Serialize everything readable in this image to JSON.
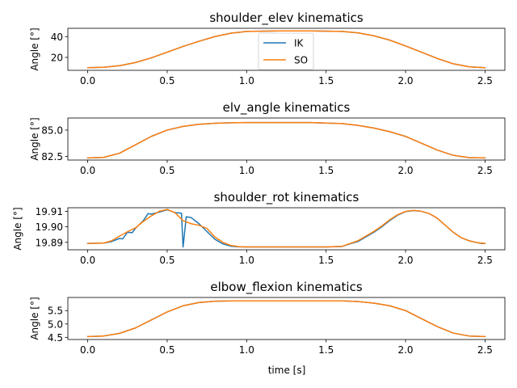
{
  "figure": {
    "xlabel": "time [s]"
  },
  "chart_data": [
    {
      "type": "line",
      "title": "shoulder_elev kinematics",
      "ylabel": "Angle [°]",
      "xlim": [
        -0.125,
        2.625
      ],
      "ylim": [
        7.5,
        48.0
      ],
      "xticks": [
        0.0,
        0.5,
        1.0,
        1.5,
        2.0,
        2.5
      ],
      "xtick_labels": [
        "0.0",
        "0.5",
        "1.0",
        "1.5",
        "2.0",
        "2.5"
      ],
      "yticks": [
        20,
        40
      ],
      "ytick_labels": [
        "20",
        "40"
      ],
      "legend": {
        "location": "upper center",
        "entries": [
          "IK",
          "SO"
        ]
      },
      "series": [
        {
          "name": "IK",
          "color": "#1f77b4",
          "x": [
            0.0,
            0.1,
            0.2,
            0.3,
            0.4,
            0.5,
            0.6,
            0.7,
            0.8,
            0.9,
            1.0,
            1.2,
            1.4,
            1.6,
            1.7,
            1.8,
            1.9,
            2.0,
            2.1,
            2.2,
            2.3,
            2.4,
            2.5
          ],
          "y": [
            10.0,
            10.4,
            12.0,
            15.0,
            19.5,
            25.0,
            30.5,
            35.5,
            40.0,
            43.2,
            45.0,
            45.5,
            45.5,
            45.0,
            43.6,
            40.8,
            36.6,
            31.0,
            25.0,
            18.9,
            13.8,
            10.9,
            10.0
          ]
        },
        {
          "name": "SO",
          "color": "#ff7f0e",
          "x": [
            0.0,
            0.1,
            0.2,
            0.3,
            0.4,
            0.5,
            0.6,
            0.7,
            0.8,
            0.9,
            1.0,
            1.2,
            1.4,
            1.6,
            1.7,
            1.8,
            1.9,
            2.0,
            2.1,
            2.2,
            2.3,
            2.4,
            2.5
          ],
          "y": [
            10.0,
            10.4,
            12.0,
            15.0,
            19.5,
            25.0,
            30.5,
            35.5,
            40.0,
            43.2,
            45.0,
            45.5,
            45.5,
            45.0,
            43.6,
            40.8,
            36.6,
            31.0,
            25.0,
            18.9,
            13.8,
            10.9,
            10.0
          ]
        }
      ]
    },
    {
      "type": "line",
      "title": "elv_angle kinematics",
      "ylabel": "Angle [°]",
      "xlim": [
        -0.125,
        2.625
      ],
      "ylim": [
        82.15,
        86.15
      ],
      "xticks": [
        0.0,
        0.5,
        1.0,
        1.5,
        2.0,
        2.5
      ],
      "xtick_labels": [
        "0.0",
        "0.5",
        "1.0",
        "1.5",
        "2.0",
        "2.5"
      ],
      "yticks": [
        82.5,
        85.0
      ],
      "ytick_labels": [
        "82.5",
        "85.0"
      ],
      "series": [
        {
          "name": "IK",
          "color": "#1f77b4",
          "x": [
            0.0,
            0.1,
            0.2,
            0.3,
            0.4,
            0.5,
            0.6,
            0.7,
            0.8,
            0.9,
            1.0,
            1.2,
            1.4,
            1.6,
            1.7,
            1.8,
            1.9,
            2.0,
            2.1,
            2.2,
            2.3,
            2.4,
            2.5
          ],
          "y": [
            82.35,
            82.4,
            82.8,
            83.6,
            84.4,
            85.0,
            85.35,
            85.55,
            85.65,
            85.7,
            85.72,
            85.72,
            85.72,
            85.62,
            85.45,
            85.2,
            84.85,
            84.4,
            83.75,
            83.1,
            82.6,
            82.38,
            82.35
          ]
        },
        {
          "name": "SO",
          "color": "#ff7f0e",
          "x": [
            0.0,
            0.1,
            0.2,
            0.3,
            0.4,
            0.5,
            0.6,
            0.7,
            0.8,
            0.9,
            1.0,
            1.2,
            1.4,
            1.6,
            1.7,
            1.8,
            1.9,
            2.0,
            2.1,
            2.2,
            2.3,
            2.4,
            2.5
          ],
          "y": [
            82.35,
            82.4,
            82.8,
            83.6,
            84.4,
            85.0,
            85.35,
            85.55,
            85.65,
            85.7,
            85.72,
            85.72,
            85.72,
            85.62,
            85.45,
            85.2,
            84.85,
            84.4,
            83.75,
            83.1,
            82.6,
            82.38,
            82.35
          ]
        }
      ]
    },
    {
      "type": "line",
      "title": "shoulder_rot kinematics",
      "ylabel": "Angle [°]",
      "xlim": [
        -0.125,
        2.625
      ],
      "ylim": [
        19.8852,
        19.9123
      ],
      "xticks": [
        0.0,
        0.5,
        1.0,
        1.5,
        2.0,
        2.5
      ],
      "xtick_labels": [
        "0.0",
        "0.5",
        "1.0",
        "1.5",
        "2.0",
        "2.5"
      ],
      "yticks": [
        19.89,
        19.9,
        19.91
      ],
      "ytick_labels": [
        "19.89",
        "19.90",
        "19.91"
      ],
      "series": [
        {
          "name": "IK",
          "color": "#1f77b4",
          "x": [
            0.0,
            0.1,
            0.15,
            0.2,
            0.22,
            0.25,
            0.28,
            0.3,
            0.35,
            0.38,
            0.4,
            0.45,
            0.5,
            0.55,
            0.59,
            0.6,
            0.62,
            0.65,
            0.7,
            0.75,
            0.8,
            0.85,
            0.9,
            0.95,
            1.0,
            1.5,
            1.6,
            1.65,
            1.7,
            1.75,
            1.8,
            1.85,
            1.9,
            1.95,
            2.0,
            2.05,
            2.1,
            2.15,
            2.2,
            2.25,
            2.3,
            2.35,
            2.4,
            2.45,
            2.48,
            2.5
          ],
          "y": [
            19.8893,
            19.8895,
            19.8905,
            19.8925,
            19.8922,
            19.8965,
            19.8962,
            19.899,
            19.904,
            19.9085,
            19.9082,
            19.9095,
            19.911,
            19.9092,
            19.9088,
            19.887,
            19.9065,
            19.906,
            19.902,
            19.897,
            19.892,
            19.889,
            19.8875,
            19.8871,
            19.887,
            19.887,
            19.8873,
            19.889,
            19.8905,
            19.8935,
            19.8965,
            19.9,
            19.904,
            19.9075,
            19.9098,
            19.9105,
            19.91,
            19.9085,
            19.9055,
            19.901,
            19.8965,
            19.893,
            19.891,
            19.8898,
            19.8892,
            19.8893
          ]
        },
        {
          "name": "SO",
          "color": "#ff7f0e",
          "x": [
            0.0,
            0.1,
            0.15,
            0.2,
            0.25,
            0.3,
            0.35,
            0.4,
            0.45,
            0.5,
            0.55,
            0.6,
            0.65,
            0.7,
            0.75,
            0.8,
            0.85,
            0.9,
            0.95,
            1.0,
            1.5,
            1.6,
            1.65,
            1.7,
            1.75,
            1.8,
            1.85,
            1.9,
            1.95,
            2.0,
            2.05,
            2.1,
            2.15,
            2.2,
            2.25,
            2.3,
            2.35,
            2.4,
            2.45,
            2.5
          ],
          "y": [
            19.8893,
            19.8895,
            19.891,
            19.894,
            19.8968,
            19.8993,
            19.9035,
            19.907,
            19.91,
            19.9112,
            19.909,
            19.904,
            19.902,
            19.901,
            19.899,
            19.8935,
            19.89,
            19.888,
            19.8872,
            19.887,
            19.887,
            19.8874,
            19.8892,
            19.891,
            19.894,
            19.897,
            19.9005,
            19.9045,
            19.9078,
            19.9099,
            19.9106,
            19.91,
            19.9085,
            19.9055,
            19.901,
            19.8965,
            19.893,
            19.891,
            19.8898,
            19.8893
          ]
        }
      ]
    },
    {
      "type": "line",
      "title": "elbow_flexion kinematics",
      "ylabel": "Angle [°]",
      "xlim": [
        -0.125,
        2.625
      ],
      "ylim": [
        4.42,
        5.99
      ],
      "xticks": [
        0.0,
        0.5,
        1.0,
        1.5,
        2.0,
        2.5
      ],
      "xtick_labels": [
        "0.0",
        "0.5",
        "1.0",
        "1.5",
        "2.0",
        "2.5"
      ],
      "yticks": [
        4.5,
        5.0,
        5.5
      ],
      "ytick_labels": [
        "4.5",
        "5.0",
        "5.5"
      ],
      "series": [
        {
          "name": "IK",
          "color": "#1f77b4",
          "x": [
            0.0,
            0.1,
            0.2,
            0.3,
            0.4,
            0.5,
            0.6,
            0.7,
            0.8,
            0.9,
            1.0,
            1.2,
            1.4,
            1.6,
            1.7,
            1.8,
            1.9,
            2.0,
            2.1,
            2.2,
            2.3,
            2.4,
            2.5
          ],
          "y": [
            4.53,
            4.55,
            4.65,
            4.85,
            5.15,
            5.45,
            5.68,
            5.8,
            5.85,
            5.86,
            5.86,
            5.86,
            5.86,
            5.86,
            5.84,
            5.78,
            5.68,
            5.5,
            5.2,
            4.9,
            4.66,
            4.55,
            4.53
          ]
        },
        {
          "name": "SO",
          "color": "#ff7f0e",
          "x": [
            0.0,
            0.1,
            0.2,
            0.3,
            0.4,
            0.5,
            0.6,
            0.7,
            0.8,
            0.9,
            1.0,
            1.2,
            1.4,
            1.6,
            1.7,
            1.8,
            1.9,
            2.0,
            2.1,
            2.2,
            2.3,
            2.4,
            2.5
          ],
          "y": [
            4.53,
            4.55,
            4.65,
            4.85,
            5.15,
            5.45,
            5.68,
            5.8,
            5.85,
            5.86,
            5.86,
            5.86,
            5.86,
            5.86,
            5.84,
            5.78,
            5.68,
            5.5,
            5.2,
            4.9,
            4.66,
            4.55,
            4.53
          ]
        }
      ]
    }
  ]
}
